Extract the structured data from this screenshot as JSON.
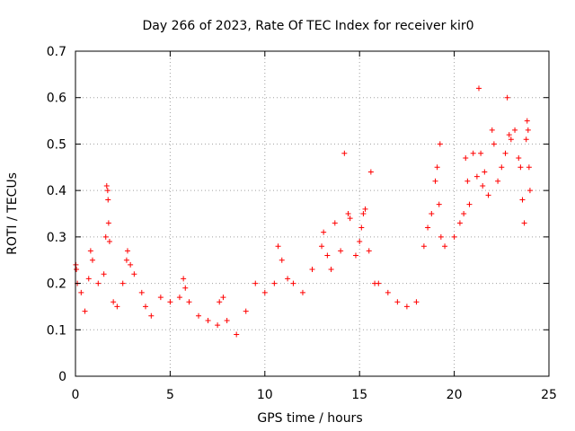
{
  "chart_data": {
    "type": "scatter",
    "title": "Day 266 of 2023, Rate Of TEC Index for receiver kir0",
    "xlabel": "GPS time / hours",
    "ylabel": "ROTI / TECUs",
    "xlim": [
      0,
      25
    ],
    "ylim": [
      0,
      0.7
    ],
    "x_ticks": [
      0,
      5,
      10,
      15,
      20,
      25
    ],
    "y_ticks": [
      0,
      0.1,
      0.2,
      0.3,
      0.4,
      0.5,
      0.6,
      0.7
    ],
    "x_tick_labels": [
      "0",
      "5",
      "10",
      "15",
      "20",
      "25"
    ],
    "y_tick_labels": [
      "0",
      "0.1",
      "0.2",
      "0.3",
      "0.4",
      "0.5",
      "0.6",
      "0.7"
    ],
    "grid": true,
    "marker": "plus",
    "color": "#ff0000",
    "series": [
      {
        "points": [
          [
            0.02,
            0.24
          ],
          [
            0.05,
            0.23
          ],
          [
            0.1,
            0.2
          ],
          [
            0.3,
            0.18
          ],
          [
            0.5,
            0.14
          ],
          [
            0.7,
            0.21
          ],
          [
            0.8,
            0.27
          ],
          [
            0.9,
            0.25
          ],
          [
            1.2,
            0.2
          ],
          [
            1.5,
            0.22
          ],
          [
            1.6,
            0.3
          ],
          [
            1.65,
            0.41
          ],
          [
            1.7,
            0.4
          ],
          [
            1.72,
            0.38
          ],
          [
            1.75,
            0.33
          ],
          [
            1.8,
            0.29
          ],
          [
            2.0,
            0.16
          ],
          [
            2.2,
            0.15
          ],
          [
            2.5,
            0.2
          ],
          [
            2.7,
            0.25
          ],
          [
            2.75,
            0.27
          ],
          [
            2.9,
            0.24
          ],
          [
            3.1,
            0.22
          ],
          [
            3.5,
            0.18
          ],
          [
            3.7,
            0.15
          ],
          [
            4.0,
            0.13
          ],
          [
            4.5,
            0.17
          ],
          [
            5.0,
            0.16
          ],
          [
            5.5,
            0.17
          ],
          [
            5.7,
            0.21
          ],
          [
            5.8,
            0.19
          ],
          [
            6.0,
            0.16
          ],
          [
            6.5,
            0.13
          ],
          [
            7.0,
            0.12
          ],
          [
            7.5,
            0.11
          ],
          [
            7.6,
            0.16
          ],
          [
            7.8,
            0.17
          ],
          [
            8.0,
            0.12
          ],
          [
            8.5,
            0.09
          ],
          [
            9.0,
            0.14
          ],
          [
            9.5,
            0.2
          ],
          [
            10.0,
            0.18
          ],
          [
            10.5,
            0.2
          ],
          [
            10.7,
            0.28
          ],
          [
            10.9,
            0.25
          ],
          [
            11.2,
            0.21
          ],
          [
            11.5,
            0.2
          ],
          [
            12.0,
            0.18
          ],
          [
            12.5,
            0.23
          ],
          [
            13.0,
            0.28
          ],
          [
            13.1,
            0.31
          ],
          [
            13.3,
            0.26
          ],
          [
            13.5,
            0.23
          ],
          [
            13.7,
            0.33
          ],
          [
            14.0,
            0.27
          ],
          [
            14.2,
            0.48
          ],
          [
            14.4,
            0.35
          ],
          [
            14.5,
            0.34
          ],
          [
            14.8,
            0.26
          ],
          [
            15.0,
            0.29
          ],
          [
            15.1,
            0.32
          ],
          [
            15.2,
            0.35
          ],
          [
            15.3,
            0.36
          ],
          [
            15.5,
            0.27
          ],
          [
            15.6,
            0.44
          ],
          [
            15.8,
            0.2
          ],
          [
            16.0,
            0.2
          ],
          [
            16.5,
            0.18
          ],
          [
            17.0,
            0.16
          ],
          [
            17.5,
            0.15
          ],
          [
            18.0,
            0.16
          ],
          [
            18.4,
            0.28
          ],
          [
            18.6,
            0.32
          ],
          [
            18.8,
            0.35
          ],
          [
            19.0,
            0.42
          ],
          [
            19.1,
            0.45
          ],
          [
            19.2,
            0.37
          ],
          [
            19.25,
            0.5
          ],
          [
            19.3,
            0.3
          ],
          [
            19.5,
            0.28
          ],
          [
            20.0,
            0.3
          ],
          [
            20.3,
            0.33
          ],
          [
            20.5,
            0.35
          ],
          [
            20.6,
            0.47
          ],
          [
            20.7,
            0.42
          ],
          [
            20.8,
            0.37
          ],
          [
            21.0,
            0.48
          ],
          [
            21.2,
            0.43
          ],
          [
            21.3,
            0.62
          ],
          [
            21.4,
            0.48
          ],
          [
            21.5,
            0.41
          ],
          [
            21.6,
            0.44
          ],
          [
            21.8,
            0.39
          ],
          [
            22.0,
            0.53
          ],
          [
            22.1,
            0.5
          ],
          [
            22.3,
            0.42
          ],
          [
            22.5,
            0.45
          ],
          [
            22.7,
            0.48
          ],
          [
            22.8,
            0.6
          ],
          [
            22.9,
            0.52
          ],
          [
            23.0,
            0.51
          ],
          [
            23.2,
            0.53
          ],
          [
            23.4,
            0.47
          ],
          [
            23.5,
            0.45
          ],
          [
            23.6,
            0.38
          ],
          [
            23.7,
            0.33
          ],
          [
            23.8,
            0.51
          ],
          [
            23.85,
            0.55
          ],
          [
            23.9,
            0.53
          ],
          [
            23.95,
            0.45
          ],
          [
            24.0,
            0.4
          ]
        ]
      }
    ]
  }
}
